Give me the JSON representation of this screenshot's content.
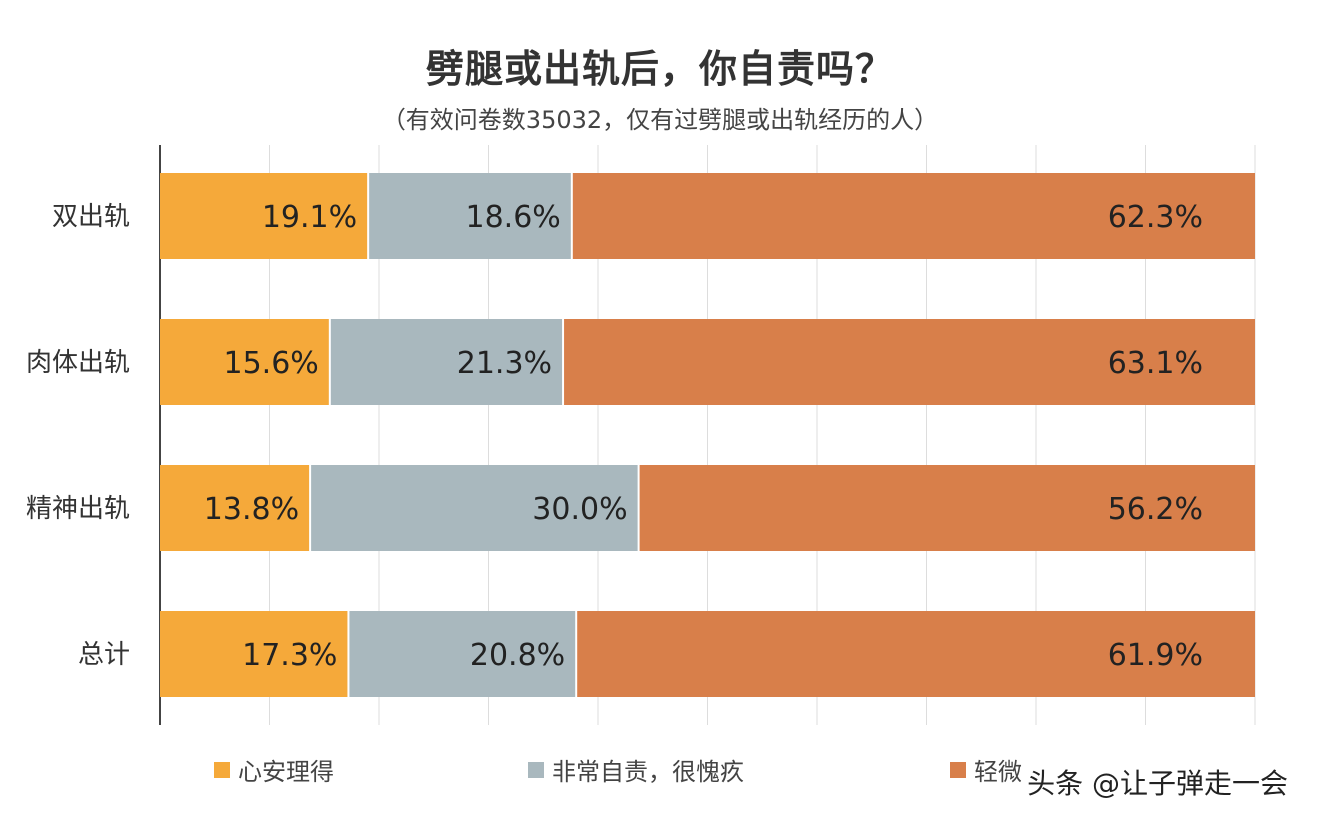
{
  "chart_data": {
    "type": "bar",
    "stacked": true,
    "orientation": "horizontal",
    "normalized_percent": true,
    "title": "劈腿或出轨后，你自责吗？",
    "subtitle": "（有效问卷数35032，仅有过劈腿或出轨经历的人）",
    "categories": [
      "双出轨",
      "肉体出轨",
      "精神出轨",
      "总计"
    ],
    "series": [
      {
        "name": "心安理得",
        "color": "#F5A93A",
        "values": [
          19.1,
          15.6,
          13.8,
          17.3
        ],
        "labels": [
          "19.1%",
          "15.6%",
          "13.8%",
          "17.3%"
        ]
      },
      {
        "name": "非常自责，很愧疚",
        "color": "#A9B8BE",
        "values": [
          18.6,
          21.3,
          30.0,
          20.8
        ],
        "labels": [
          "18.6%",
          "21.3%",
          "30.0%",
          "20.8%"
        ]
      },
      {
        "name": "轻微",
        "color": "#D87F4A",
        "values": [
          62.3,
          63.1,
          56.2,
          61.9
        ],
        "labels": [
          "62.3%",
          "63.1%",
          "56.2%",
          "61.9%"
        ]
      }
    ],
    "xlim": [
      0,
      100
    ],
    "grid": true,
    "legend_position": "bottom"
  },
  "watermark": {
    "text": "头条 @让子弹走一会"
  }
}
